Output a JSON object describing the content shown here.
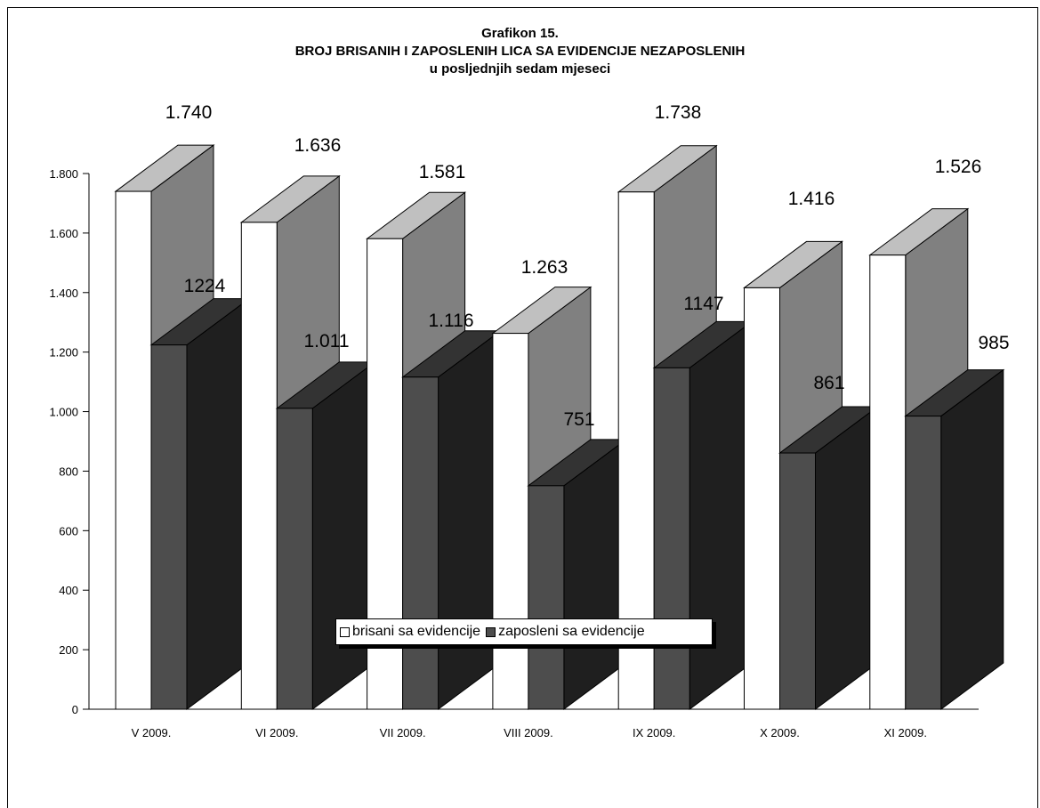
{
  "chart_data": {
    "type": "bar",
    "title": "Grafikon 15.",
    "subtitle": "BROJ BRISANIH I ZAPOSLENIH LICA SA EVIDENCIJE NEZAPOSLENIH",
    "subtitle2": "u posljednjih sedam mjeseci",
    "categories": [
      "V 2009.",
      "VI 2009.",
      "VII 2009.",
      "VIII 2009.",
      "IX 2009.",
      "X 2009.",
      "XI 2009."
    ],
    "series": [
      {
        "name": "brisani sa evidencije",
        "values": [
          1740,
          1636,
          1581,
          1263,
          1738,
          1416,
          1526
        ],
        "labels": [
          "1.740",
          "1.636",
          "1.581",
          "1.263",
          "1.738",
          "1.416",
          "1.526"
        ],
        "color": "#ffffff",
        "side_color": "#808080",
        "top_color": "#c0c0c0"
      },
      {
        "name": "zaposleni sa evidencije",
        "values": [
          1224,
          1011,
          1116,
          751,
          1147,
          861,
          985
        ],
        "labels": [
          "1224",
          "1.011",
          "1.116",
          "751",
          "1147",
          "861",
          "985"
        ],
        "color": "#4d4d4d",
        "side_color": "#1f1f1f",
        "top_color": "#333333"
      }
    ],
    "ylim": [
      0,
      1800
    ],
    "yticks": [
      0,
      200,
      400,
      600,
      800,
      1000,
      1200,
      1400,
      1600,
      1800
    ],
    "ytick_labels": [
      "0",
      "200",
      "400",
      "600",
      "800",
      "1.000",
      "1.200",
      "1.400",
      "1.600",
      "1.800"
    ],
    "xlabel": "",
    "ylabel": "",
    "grid": false,
    "legend_position": "bottom"
  }
}
